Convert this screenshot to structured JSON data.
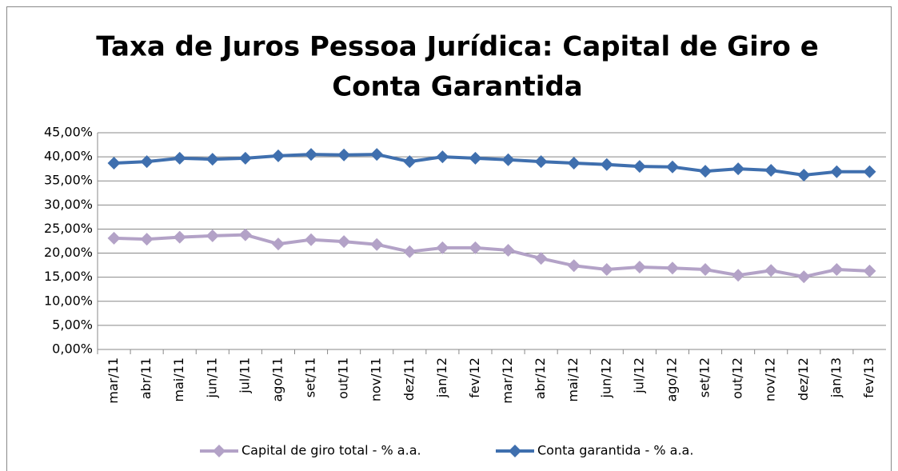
{
  "chart_data": {
    "type": "line",
    "title": [
      "Taxa de Juros Pessoa Jurídica: Capital de Giro e",
      "Conta Garantida"
    ],
    "categories": [
      "mar/11",
      "abr/11",
      "mai/11",
      "jun/11",
      "jul/11",
      "ago/11",
      "set/11",
      "out/11",
      "nov/11",
      "dez/11",
      "jan/12",
      "fev/12",
      "mar/12",
      "abr/12",
      "mai/12",
      "jun/12",
      "jul/12",
      "ago/12",
      "set/12",
      "out/12",
      "nov/12",
      "dez/12",
      "jan/13",
      "fev/13"
    ],
    "series": [
      {
        "name": "Capital de giro total - % a.a.",
        "color": "#b3a2c7",
        "values": [
          23.1,
          22.9,
          23.3,
          23.6,
          23.8,
          21.9,
          22.8,
          22.4,
          21.8,
          20.3,
          21.1,
          21.1,
          20.6,
          18.9,
          17.4,
          16.6,
          17.1,
          16.9,
          16.6,
          15.4,
          16.4,
          15.1,
          16.6,
          16.3
        ]
      },
      {
        "name": "Conta garantida - % a.a.",
        "color": "#3f6fae",
        "values": [
          38.7,
          39.0,
          39.7,
          39.5,
          39.7,
          40.2,
          40.5,
          40.4,
          40.5,
          39.0,
          40.0,
          39.7,
          39.4,
          39.0,
          38.7,
          38.4,
          38.0,
          37.9,
          37.0,
          37.5,
          37.2,
          36.2,
          36.9,
          36.9
        ]
      }
    ],
    "ylim": [
      0,
      45
    ],
    "yticks": [
      {
        "value": 0,
        "label": "0,00%"
      },
      {
        "value": 5,
        "label": "5,00%"
      },
      {
        "value": 10,
        "label": "10,00%"
      },
      {
        "value": 15,
        "label": "15,00%"
      },
      {
        "value": 20,
        "label": "20,00%"
      },
      {
        "value": 25,
        "label": "25,00%"
      },
      {
        "value": 30,
        "label": "30,00%"
      },
      {
        "value": 35,
        "label": "35,00%"
      },
      {
        "value": 40,
        "label": "40,00%"
      },
      {
        "value": 45,
        "label": "45,00%"
      }
    ],
    "grid": true,
    "legend": "bottom"
  }
}
